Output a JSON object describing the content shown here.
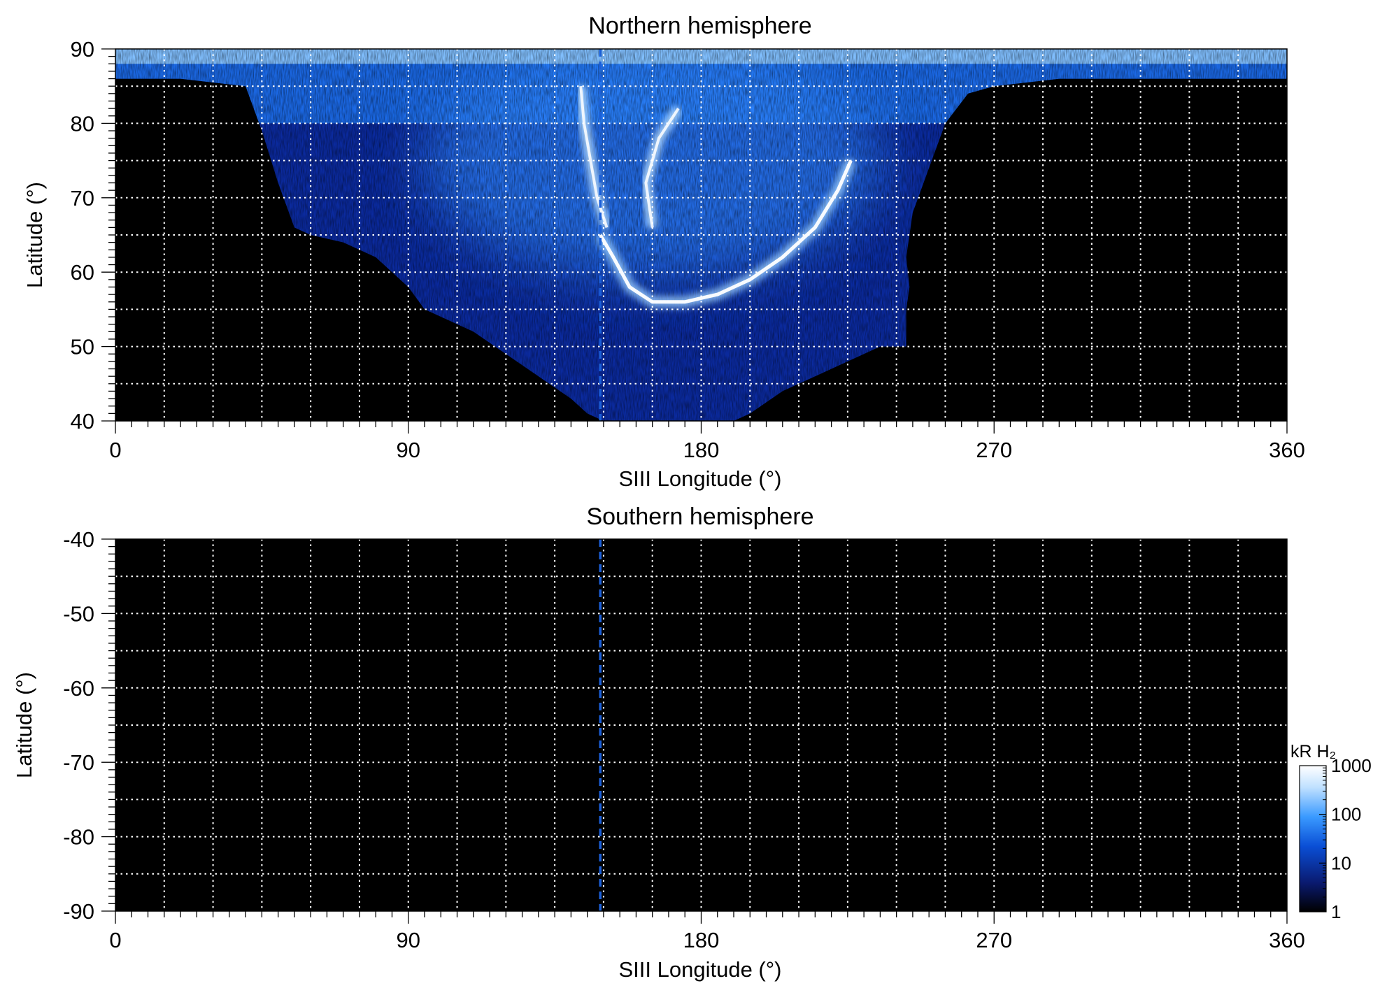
{
  "chart_data": [
    {
      "type": "heatmap",
      "title": "Northern hemisphere",
      "xlabel": "SIII Longitude (°)",
      "ylabel": "Latitude (°)",
      "xlim": [
        0,
        360
      ],
      "ylim": [
        40,
        90
      ],
      "xticks": [
        0,
        90,
        180,
        270,
        360
      ],
      "yticks": [
        40,
        50,
        60,
        70,
        80,
        90
      ],
      "xgrid_step": 15,
      "ygrid_step": 5,
      "grid": true,
      "dashed_line_longitude": 149,
      "coverage_lower_edge": [
        [
          0,
          86
        ],
        [
          20,
          86
        ],
        [
          40,
          85
        ],
        [
          45,
          79
        ],
        [
          50,
          72
        ],
        [
          55,
          66
        ],
        [
          60,
          65
        ],
        [
          70,
          64
        ],
        [
          80,
          62
        ],
        [
          90,
          58
        ],
        [
          95,
          55
        ],
        [
          100,
          54
        ],
        [
          110,
          52
        ],
        [
          120,
          49
        ],
        [
          130,
          46
        ],
        [
          140,
          43
        ],
        [
          145,
          41
        ],
        [
          150,
          40
        ],
        [
          190,
          40
        ],
        [
          195,
          41
        ],
        [
          205,
          44
        ],
        [
          215,
          46
        ],
        [
          225,
          48
        ],
        [
          235,
          50
        ],
        [
          243,
          50
        ],
        [
          243,
          55
        ],
        [
          244,
          58
        ],
        [
          243,
          62
        ],
        [
          245,
          68
        ],
        [
          250,
          74
        ],
        [
          255,
          80
        ],
        [
          262,
          84
        ],
        [
          270,
          85
        ],
        [
          290,
          86
        ],
        [
          340,
          86
        ],
        [
          360,
          86
        ]
      ],
      "main_oval": [
        [
          149,
          65
        ],
        [
          153,
          62
        ],
        [
          158,
          58
        ],
        [
          165,
          56
        ],
        [
          175,
          56
        ],
        [
          185,
          57
        ],
        [
          195,
          59
        ],
        [
          205,
          62
        ],
        [
          215,
          66
        ],
        [
          222,
          71
        ],
        [
          226,
          75
        ]
      ],
      "arc_features": [
        [
          [
            151,
            66
          ],
          [
            148,
            70
          ],
          [
            146,
            75
          ],
          [
            144,
            80
          ],
          [
            143,
            85
          ]
        ],
        [
          [
            165,
            66
          ],
          [
            163,
            72
          ],
          [
            167,
            78
          ],
          [
            173,
            82
          ]
        ]
      ],
      "colorbar": {
        "label": "kR H₂",
        "ticks": [
          "1000",
          "100",
          "10",
          "1"
        ],
        "scale": "log",
        "range": [
          1,
          1000
        ],
        "colors": [
          "#000000",
          "#0a1a70",
          "#0a4fd6",
          "#3a9aff",
          "#bfe0ff",
          "#ffffff"
        ]
      }
    },
    {
      "type": "heatmap",
      "title": "Southern hemisphere",
      "xlabel": "SIII Longitude (°)",
      "ylabel": "Latitude (°)",
      "xlim": [
        0,
        360
      ],
      "ylim": [
        -90,
        -40
      ],
      "xticks": [
        0,
        90,
        180,
        270,
        360
      ],
      "yticks": [
        -40,
        -50,
        -60,
        -70,
        -80,
        -90
      ],
      "xgrid_step": 15,
      "ygrid_step": 5,
      "grid": true,
      "dashed_line_longitude": 149,
      "coverage_lower_edge": []
    }
  ]
}
